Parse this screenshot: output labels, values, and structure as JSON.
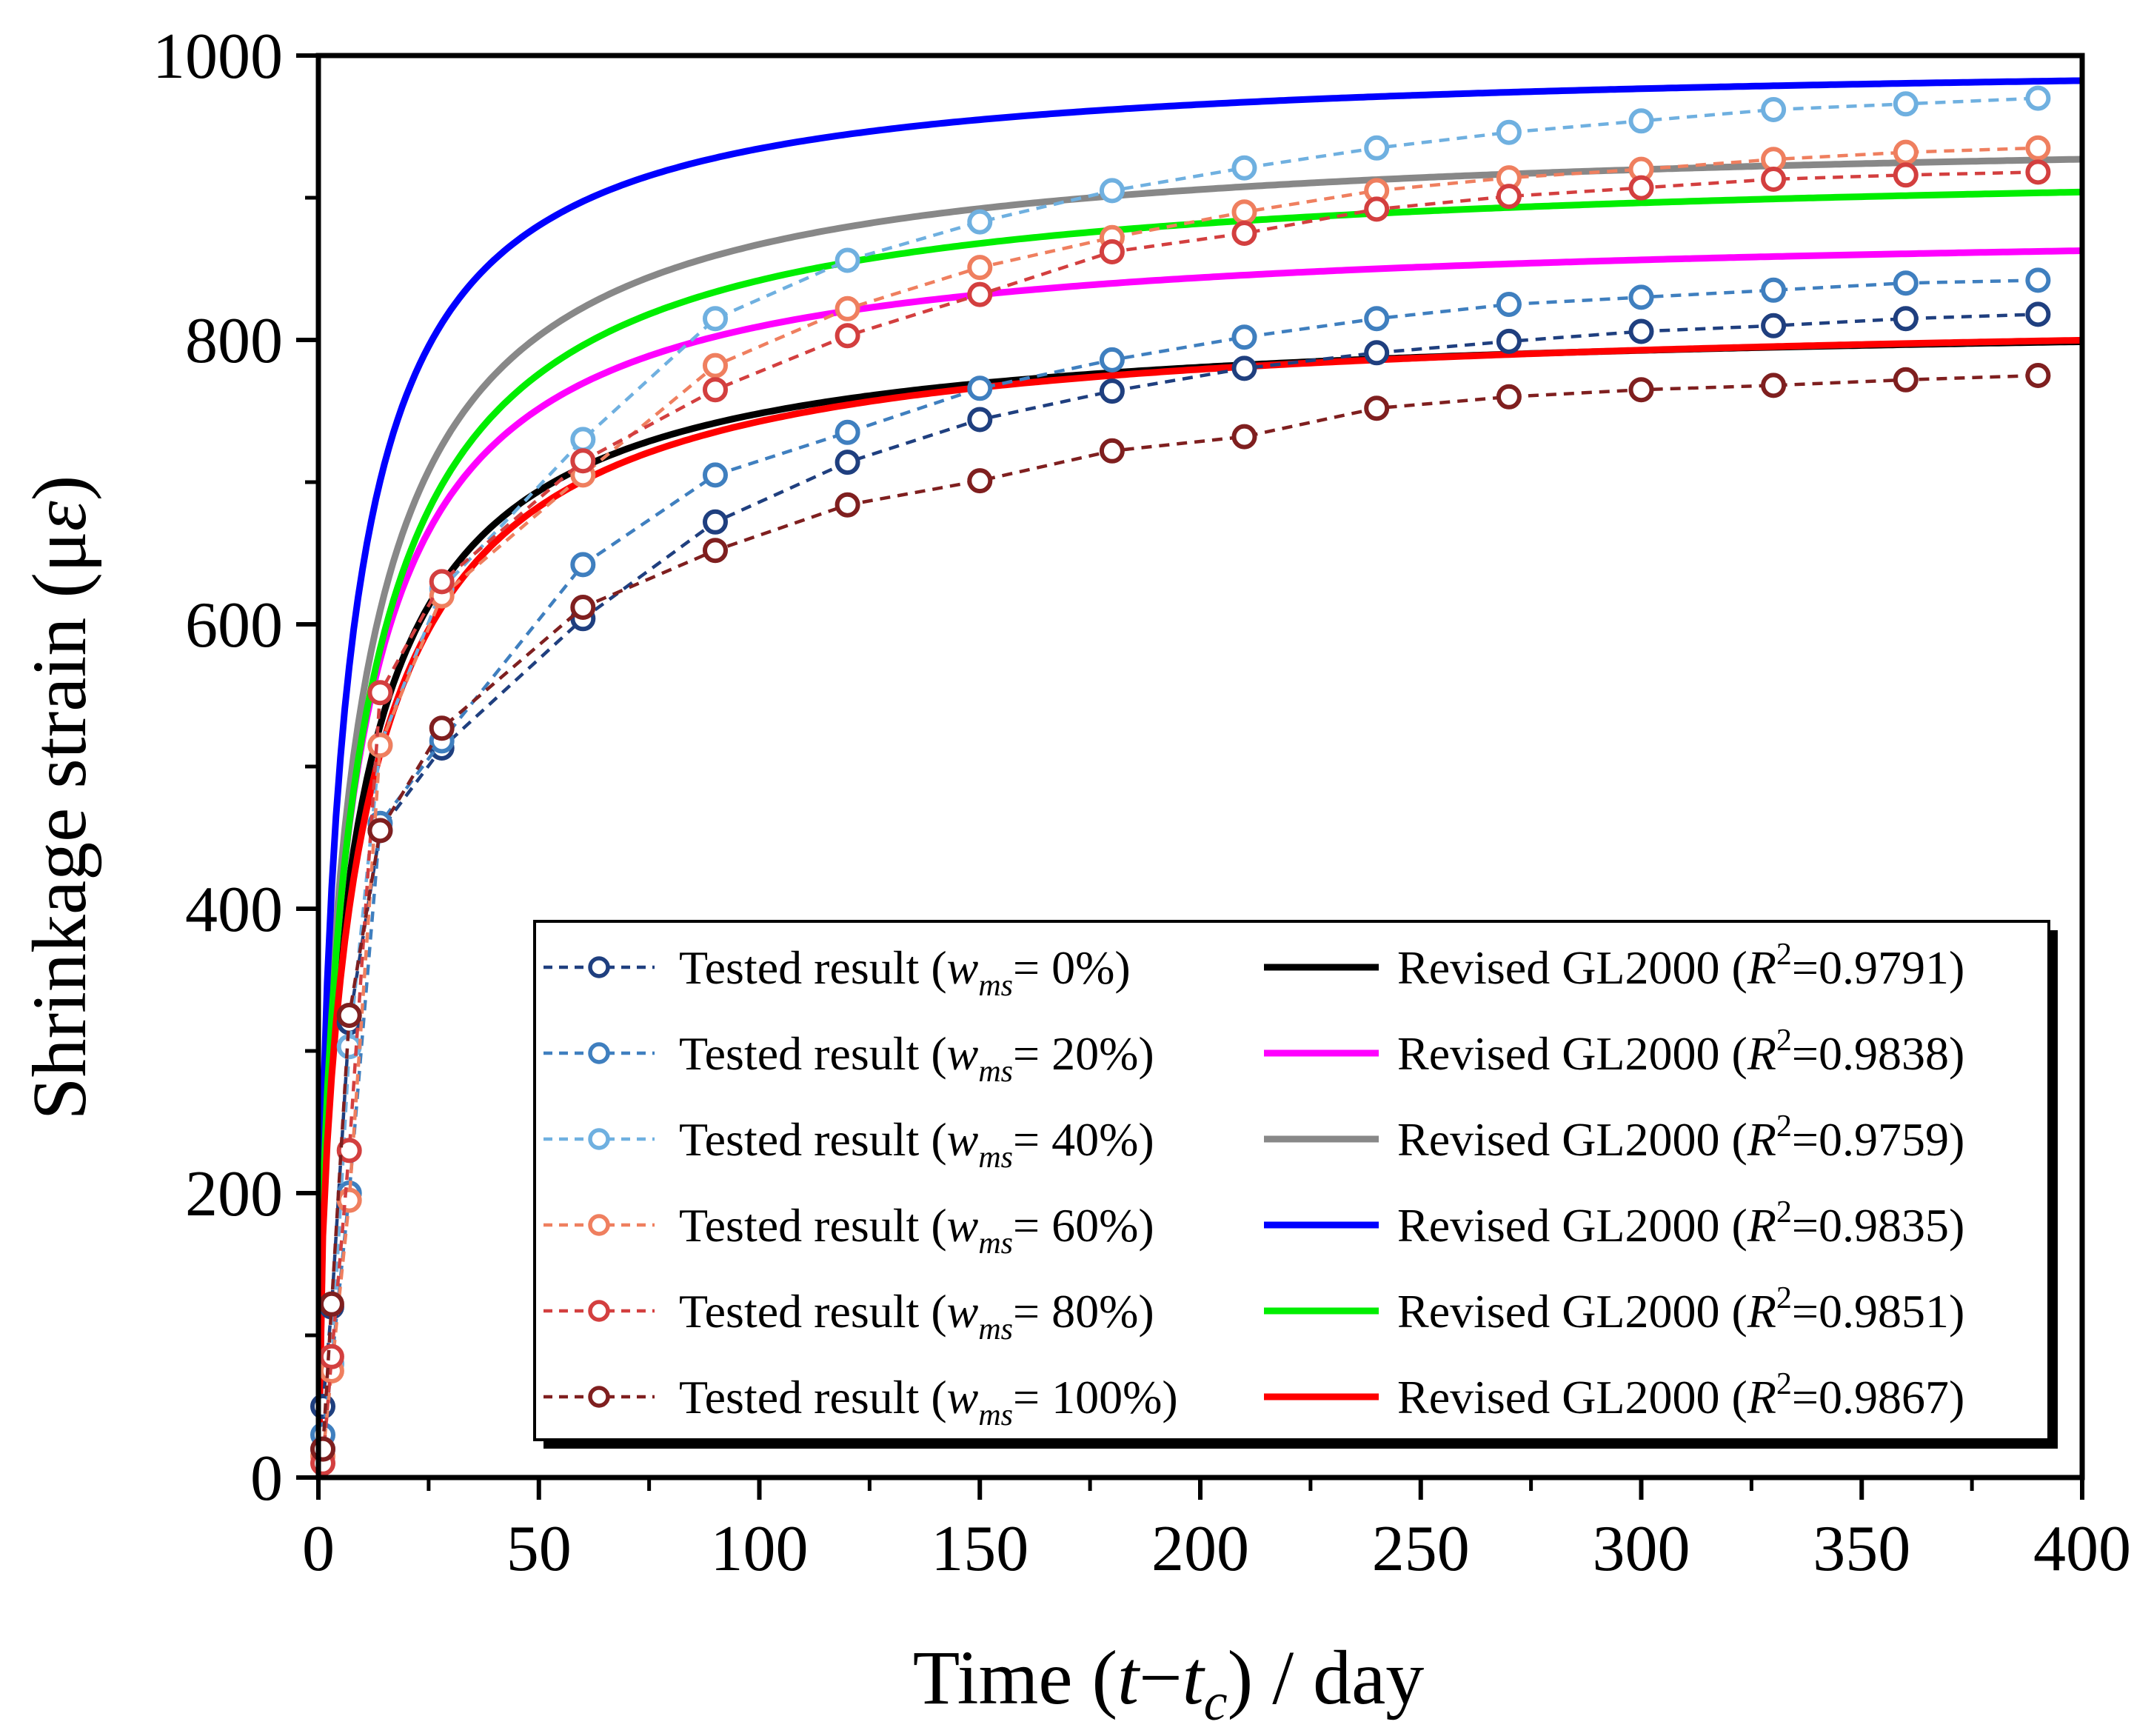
{
  "chart_data": {
    "type": "line",
    "xlabel": "Time (t−tc) / day",
    "ylabel": "Shrinkage strain (με)",
    "xlim": [
      0,
      400
    ],
    "ylim": [
      0,
      1000
    ],
    "xticks": [
      0,
      50,
      100,
      150,
      200,
      250,
      300,
      350,
      400
    ],
    "yticks": [
      0,
      200,
      400,
      600,
      800,
      1000
    ],
    "x_tick_labels": [
      "0",
      "50",
      "100",
      "150",
      "200",
      "250",
      "300",
      "350",
      "400"
    ],
    "y_tick_labels": [
      "0",
      "200",
      "400",
      "600",
      "800",
      "1000"
    ],
    "xlabel_parts": {
      "lead": "Time (",
      "t": "t",
      "minus": "−",
      "tc_t": "t",
      "tc_sub": "c",
      "tail": ") / day"
    },
    "ylabel_parts": {
      "lead": "Shrinkage strain (μ",
      "eps": "ε",
      "tail": ")"
    },
    "tested_series": [
      {
        "name": "Tested result (wms= 0%)",
        "label_prefix": "Tested result (",
        "label_w": "w",
        "label_sub": "ms",
        "label_suffix": "= 0%)",
        "color": "#1f3f7f",
        "x": [
          1,
          3,
          7,
          14,
          28,
          60,
          90,
          120,
          150,
          180,
          210,
          240,
          270,
          300,
          330,
          360,
          390
        ],
        "values": [
          50,
          120,
          320,
          455,
          513,
          604,
          672,
          714,
          744,
          764,
          780,
          791,
          799,
          806,
          810,
          815,
          818
        ]
      },
      {
        "name": "Tested result (wms= 20%)",
        "label_prefix": "Tested result (",
        "label_w": "w",
        "label_sub": "ms",
        "label_suffix": "= 20%)",
        "color": "#3f7fbf",
        "x": [
          1,
          3,
          7,
          14,
          28,
          60,
          90,
          120,
          150,
          180,
          210,
          240,
          270,
          300,
          330,
          360,
          390
        ],
        "values": [
          30,
          80,
          200,
          460,
          518,
          642,
          705,
          735,
          766,
          786,
          802,
          815,
          825,
          830,
          835,
          840,
          842
        ]
      },
      {
        "name": "Tested result (wms= 40%)",
        "label_prefix": "Tested result (",
        "label_w": "w",
        "label_sub": "ms",
        "label_suffix": "= 40%)",
        "color": "#6fb0e0",
        "x": [
          1,
          3,
          7,
          14,
          28,
          60,
          90,
          120,
          150,
          180,
          210,
          240,
          270,
          300,
          330,
          360,
          390
        ],
        "values": [
          20,
          80,
          303,
          515,
          625,
          730,
          815,
          856,
          883,
          905,
          921,
          935,
          946,
          954,
          962,
          966,
          970
        ]
      },
      {
        "name": "Tested result (wms= 60%)",
        "label_prefix": "Tested result (",
        "label_w": "w",
        "label_sub": "ms",
        "label_suffix": "= 60%)",
        "color": "#ef7f5f",
        "x": [
          1,
          3,
          7,
          14,
          28,
          60,
          90,
          120,
          150,
          180,
          210,
          240,
          270,
          300,
          330,
          360,
          390
        ],
        "values": [
          15,
          75,
          195,
          515,
          620,
          705,
          782,
          822,
          851,
          872,
          890,
          905,
          914,
          920,
          927,
          932,
          935
        ]
      },
      {
        "name": "Tested result (wms= 80%)",
        "label_prefix": "Tested result (",
        "label_w": "w",
        "label_sub": "ms",
        "label_suffix": "= 80%)",
        "color": "#d33f3f",
        "x": [
          1,
          3,
          7,
          14,
          28,
          60,
          90,
          120,
          150,
          180,
          210,
          240,
          270,
          300,
          330,
          360,
          390
        ],
        "values": [
          10,
          85,
          230,
          552,
          630,
          715,
          765,
          803,
          832,
          862,
          875,
          892,
          901,
          907,
          913,
          916,
          918
        ]
      },
      {
        "name": "Tested result (wms= 100%)",
        "label_prefix": "Tested result (",
        "label_w": "w",
        "label_sub": "ms",
        "label_suffix": "= 100%)",
        "color": "#7f1f1f",
        "x": [
          1,
          3,
          7,
          14,
          28,
          60,
          90,
          120,
          150,
          180,
          210,
          240,
          270,
          300,
          330,
          360,
          390
        ],
        "values": [
          20,
          122,
          325,
          455,
          527,
          612,
          652,
          684,
          701,
          722,
          732,
          752,
          760,
          765,
          768,
          772,
          775
        ]
      }
    ],
    "fit_series": [
      {
        "name": "Revised GL2000 (R2=0.9791)",
        "label_prefix": "Revised GL2000 (",
        "label_r": "R",
        "label_sup": "2",
        "label_suffix": "=0.9791)",
        "color": "#000000",
        "ultimate": 818,
        "shape": 19.5
      },
      {
        "name": "Revised GL2000 (R2=0.9838)",
        "label_prefix": "Revised GL2000 (",
        "label_r": "R",
        "label_sup": "2",
        "label_suffix": "=0.9838)",
        "color": "#ff00ff",
        "ultimate": 883,
        "shape": 19.0
      },
      {
        "name": "Revised GL2000 (R2=0.9759)",
        "label_prefix": "Revised GL2000 (",
        "label_r": "R",
        "label_sup": "2",
        "label_suffix": "=0.9759)",
        "color": "#888888",
        "ultimate": 950,
        "shape": 20.0
      },
      {
        "name": "Revised GL2000 (R2=0.9835)",
        "label_prefix": "Revised GL2000 (",
        "label_r": "R",
        "label_sup": "2",
        "label_suffix": "=0.9835)",
        "color": "#0000ff",
        "ultimate": 1000,
        "shape": 14.5
      },
      {
        "name": "Revised GL2000 (R2=0.9851)",
        "label_prefix": "Revised GL2000 (",
        "label_r": "R",
        "label_sup": "2",
        "label_suffix": "=0.9851)",
        "color": "#00ee00",
        "ultimate": 928,
        "shape": 21.5
      },
      {
        "name": "Revised GL2000 (R2=0.9867)",
        "label_prefix": "Revised GL2000 (",
        "label_r": "R",
        "label_sup": "2",
        "label_suffix": "=0.9867)",
        "color": "#ff0000",
        "ultimate": 822,
        "shape": 22.5
      }
    ],
    "grid": false,
    "legend_position": "bottom-right"
  }
}
